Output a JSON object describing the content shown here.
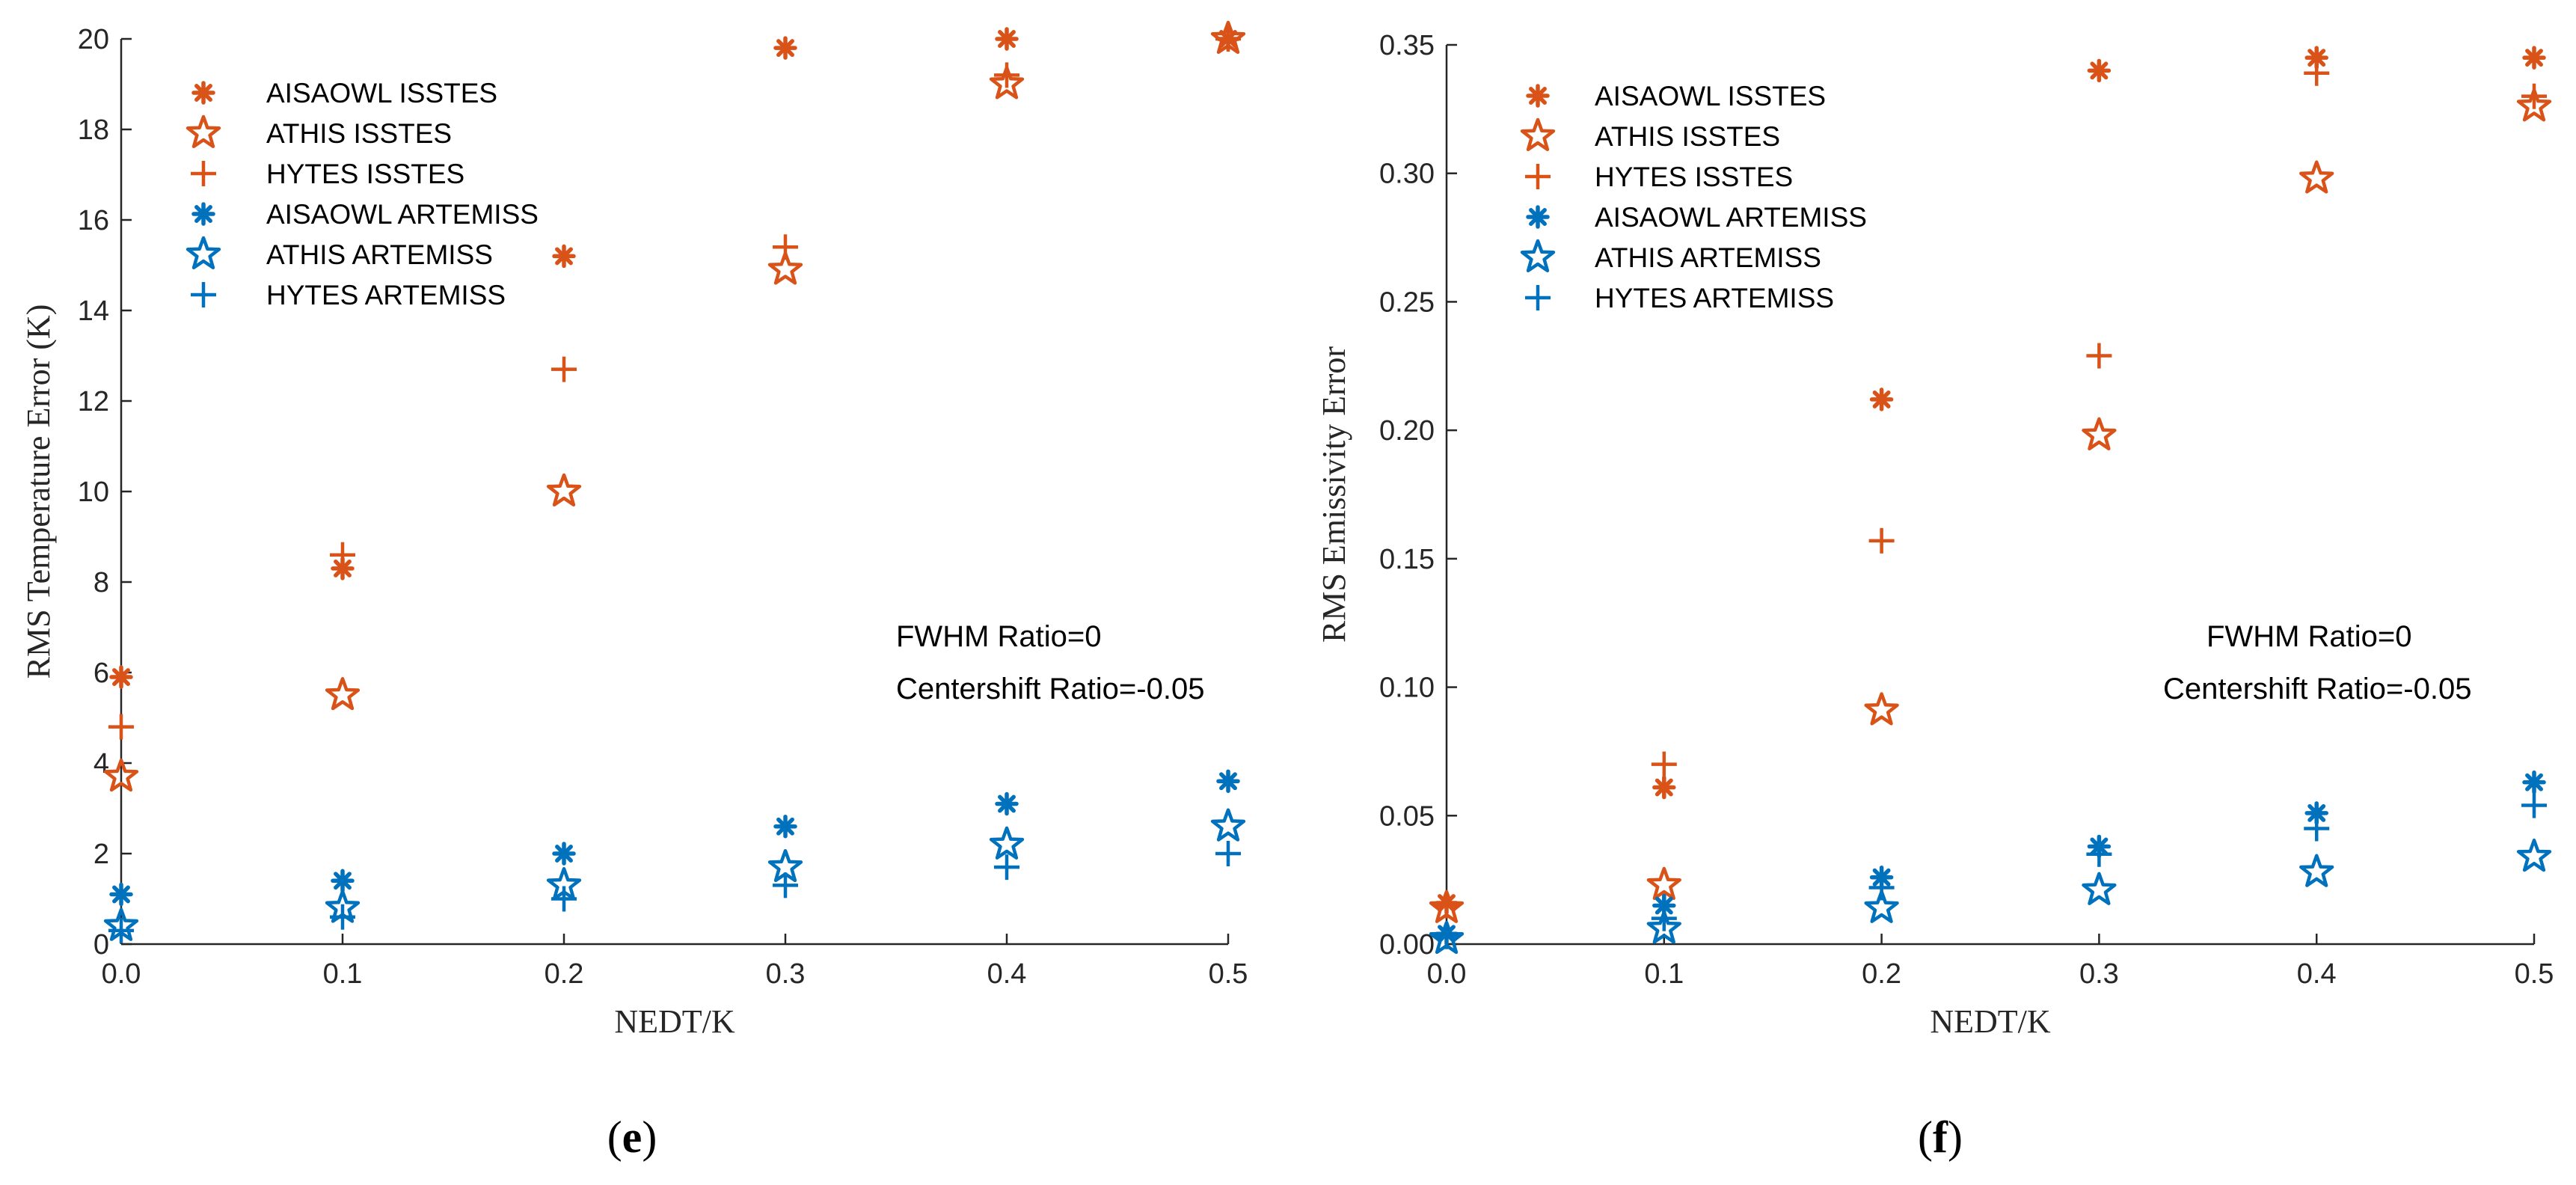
{
  "colors": {
    "isstes": "#D95319",
    "artemiss": "#0072BD",
    "axis": "#262626"
  },
  "chart_data": [
    {
      "type": "scatter",
      "panel": "e",
      "xlabel": "NEDT/K",
      "ylabel": "RMS Temperature Error (K)",
      "xlim": [
        0,
        0.5
      ],
      "ylim": [
        0,
        20
      ],
      "x_ticks": [
        0.0,
        0.1,
        0.2,
        0.3,
        0.4,
        0.5
      ],
      "x_tick_labels": [
        "0.0",
        "0.1",
        "0.2",
        "0.3",
        "0.4",
        "0.5"
      ],
      "y_ticks": [
        0,
        2,
        4,
        6,
        8,
        10,
        12,
        14,
        16,
        18,
        20
      ],
      "y_tick_labels": [
        "0",
        "2",
        "4",
        "6",
        "8",
        "10",
        "12",
        "14",
        "16",
        "18",
        "20"
      ],
      "grid": false,
      "legend_position": "top-left",
      "annotations": [
        "FWHM Ratio=0",
        "Centershift Ratio=-0.05"
      ],
      "series": [
        {
          "name": "AISAOWL ISSTES",
          "marker": "asterisk",
          "color_key": "isstes",
          "x": [
            0,
            0.1,
            0.2,
            0.3,
            0.4,
            0.5
          ],
          "y": [
            5.9,
            8.3,
            15.2,
            19.8,
            20.0,
            20.0
          ]
        },
        {
          "name": "ATHIS ISSTES",
          "marker": "star",
          "color_key": "isstes",
          "x": [
            0,
            0.1,
            0.2,
            0.3,
            0.4,
            0.5
          ],
          "y": [
            3.7,
            5.5,
            10.0,
            14.9,
            19.0,
            20.0
          ]
        },
        {
          "name": "HYTES ISSTES",
          "marker": "plus",
          "color_key": "isstes",
          "x": [
            0,
            0.1,
            0.2,
            0.3,
            0.4,
            0.5
          ],
          "y": [
            4.8,
            8.6,
            12.7,
            15.4,
            19.2,
            20.0
          ]
        },
        {
          "name": "AISAOWL ARTEMISS",
          "marker": "asterisk",
          "color_key": "artemiss",
          "x": [
            0,
            0.1,
            0.2,
            0.3,
            0.4,
            0.5
          ],
          "y": [
            1.1,
            1.4,
            2.0,
            2.6,
            3.1,
            3.6
          ]
        },
        {
          "name": "ATHIS ARTEMISS",
          "marker": "star",
          "color_key": "artemiss",
          "x": [
            0,
            0.1,
            0.2,
            0.3,
            0.4,
            0.5
          ],
          "y": [
            0.4,
            0.8,
            1.3,
            1.7,
            2.2,
            2.6
          ]
        },
        {
          "name": "HYTES ARTEMISS",
          "marker": "plus",
          "color_key": "artemiss",
          "x": [
            0,
            0.1,
            0.2,
            0.3,
            0.4,
            0.5
          ],
          "y": [
            0.3,
            0.6,
            1.0,
            1.3,
            1.7,
            2.0
          ]
        }
      ]
    },
    {
      "type": "scatter",
      "panel": "f",
      "xlabel": "NEDT/K",
      "ylabel": "RMS Emissivity Error",
      "xlim": [
        0,
        0.5
      ],
      "ylim": [
        0,
        0.35
      ],
      "x_ticks": [
        0.0,
        0.1,
        0.2,
        0.3,
        0.4,
        0.5
      ],
      "x_tick_labels": [
        "0.0",
        "0.1",
        "0.2",
        "0.3",
        "0.4",
        "0.5"
      ],
      "y_ticks": [
        0,
        0.05,
        0.1,
        0.15,
        0.2,
        0.25,
        0.3,
        0.35
      ],
      "y_tick_labels": [
        "0.00",
        "0.05",
        "0.10",
        "0.15",
        "0.20",
        "0.25",
        "0.30",
        "0.35"
      ],
      "grid": false,
      "legend_position": "top-left",
      "annotations": [
        "FWHM Ratio=0",
        "Centershift Ratio=-0.05"
      ],
      "series": [
        {
          "name": "AISAOWL ISSTES",
          "marker": "asterisk",
          "color_key": "isstes",
          "x": [
            0,
            0.1,
            0.2,
            0.3,
            0.4,
            0.5
          ],
          "y": [
            0.016,
            0.061,
            0.212,
            0.34,
            0.345,
            0.345
          ]
        },
        {
          "name": "ATHIS ISSTES",
          "marker": "star",
          "color_key": "isstes",
          "x": [
            0,
            0.1,
            0.2,
            0.3,
            0.4,
            0.5
          ],
          "y": [
            0.014,
            0.023,
            0.091,
            0.198,
            0.298,
            0.326
          ]
        },
        {
          "name": "HYTES ISSTES",
          "marker": "plus",
          "color_key": "isstes",
          "x": [
            0,
            0.1,
            0.2,
            0.3,
            0.4,
            0.5
          ],
          "y": [
            0.015,
            0.07,
            0.157,
            0.229,
            0.339,
            0.33
          ]
        },
        {
          "name": "AISAOWL ARTEMISS",
          "marker": "asterisk",
          "color_key": "artemiss",
          "x": [
            0,
            0.1,
            0.2,
            0.3,
            0.4,
            0.5
          ],
          "y": [
            0.004,
            0.015,
            0.026,
            0.038,
            0.051,
            0.063
          ]
        },
        {
          "name": "ATHIS ARTEMISS",
          "marker": "star",
          "color_key": "artemiss",
          "x": [
            0,
            0.1,
            0.2,
            0.3,
            0.4,
            0.5
          ],
          "y": [
            0.002,
            0.006,
            0.014,
            0.021,
            0.028,
            0.034
          ]
        },
        {
          "name": "HYTES ARTEMISS",
          "marker": "plus",
          "color_key": "artemiss",
          "x": [
            0,
            0.1,
            0.2,
            0.3,
            0.4,
            0.5
          ],
          "y": [
            0.003,
            0.01,
            0.022,
            0.035,
            0.045,
            0.054
          ]
        }
      ]
    }
  ],
  "panel_labels": [
    {
      "open": "(",
      "letter": "e",
      "close": ")"
    },
    {
      "open": "(",
      "letter": "f",
      "close": ")"
    }
  ]
}
